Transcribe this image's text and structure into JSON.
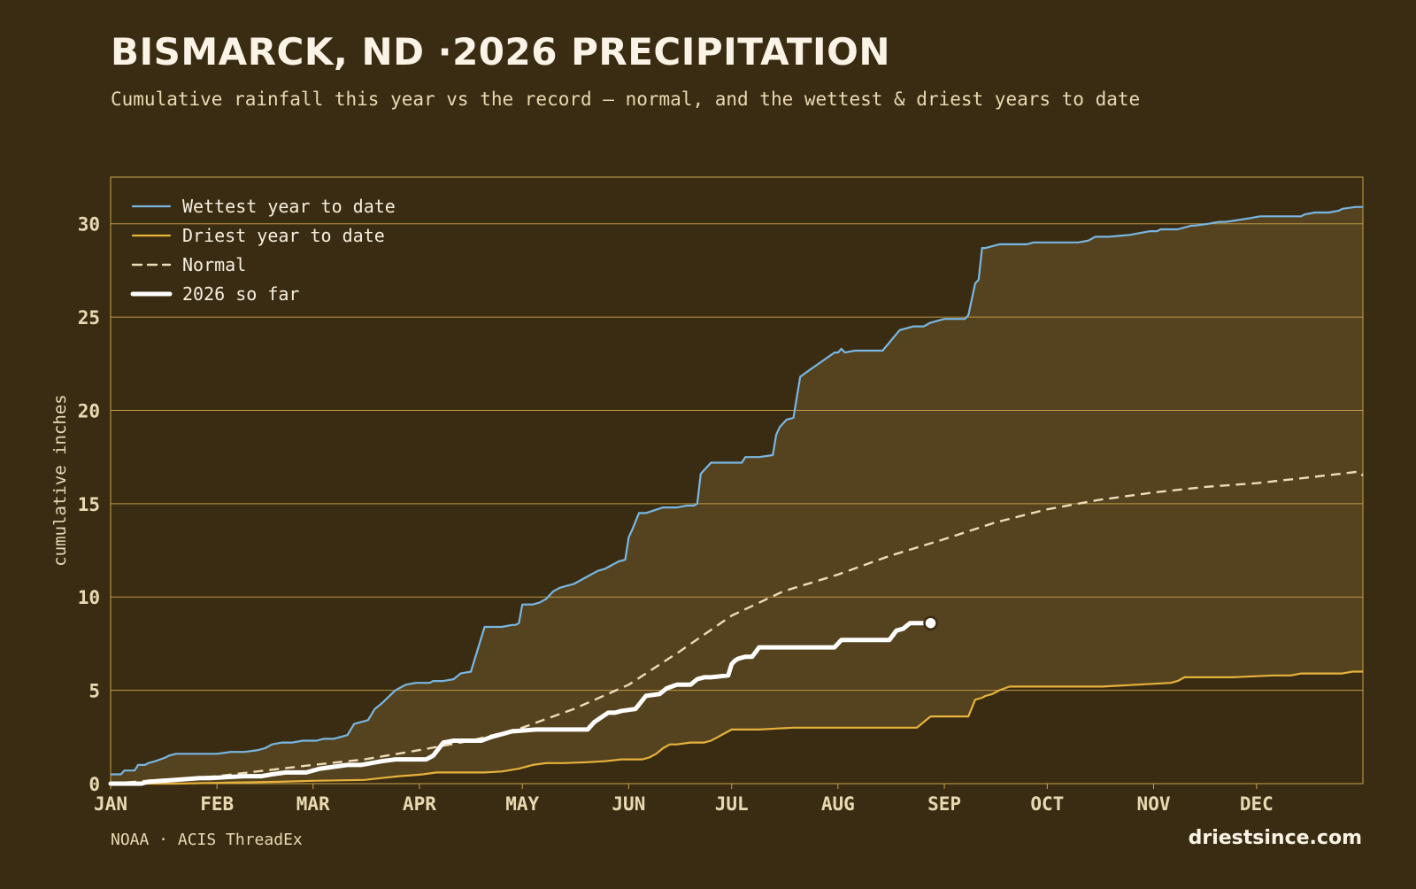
{
  "header": {
    "title": "BISMARCK, ND ·2026 PRECIPITATION",
    "subtitle": "Cumulative rainfall this year vs the record — normal, and the wettest & driest years to date"
  },
  "footer": {
    "source": "NOAA · ACIS ThreadEx",
    "brand": "driestsince.com"
  },
  "colors": {
    "background": "#3a2c12",
    "band_fill": "#55421f",
    "grid": "#c9a24a",
    "wettest": "#78b7e3",
    "driest": "#e6b23c",
    "normal": "#ecdcb8",
    "current": "#ffffff",
    "tick_text": "#e9d9b3"
  },
  "chart_data": {
    "type": "line",
    "title": "BISMARCK, ND ·2026 PRECIPITATION",
    "xlabel": "",
    "ylabel": "cumulative inches",
    "xlim": [
      1,
      366
    ],
    "ylim": [
      0,
      32.5
    ],
    "x_unit": "day of year",
    "yticks": [
      0,
      5,
      10,
      15,
      20,
      25,
      30
    ],
    "xticks": [
      {
        "label": "JAN",
        "day": 1
      },
      {
        "label": "FEB",
        "day": 32
      },
      {
        "label": "MAR",
        "day": 60
      },
      {
        "label": "APR",
        "day": 91
      },
      {
        "label": "MAY",
        "day": 121
      },
      {
        "label": "JUN",
        "day": 152
      },
      {
        "label": "JUL",
        "day": 182
      },
      {
        "label": "AUG",
        "day": 213
      },
      {
        "label": "SEP",
        "day": 244
      },
      {
        "label": "OCT",
        "day": 274
      },
      {
        "label": "NOV",
        "day": 305
      },
      {
        "label": "DEC",
        "day": 335
      }
    ],
    "grid": true,
    "legend_position": "top-left",
    "series": [
      {
        "name": "Wettest year to date",
        "style": "line",
        "x": [
          1,
          4,
          5,
          8,
          9,
          11,
          12,
          14,
          17,
          18,
          20,
          23,
          32,
          36,
          40,
          44,
          46,
          48,
          51,
          54,
          57,
          61,
          63,
          66,
          68,
          70,
          72,
          74,
          76,
          78,
          80,
          84,
          87,
          90,
          92,
          94,
          95,
          97,
          98,
          101,
          103,
          106,
          110,
          115,
          118,
          119,
          120,
          121,
          122,
          124,
          126,
          128,
          130,
          132,
          134,
          136,
          140,
          143,
          145,
          147,
          148,
          149,
          151,
          152,
          153,
          155,
          157,
          162,
          166,
          169,
          171,
          172,
          173,
          174,
          176,
          185,
          186,
          190,
          194,
          195,
          196,
          197,
          198,
          200,
          202,
          205,
          212,
          213,
          214,
          215,
          218,
          226,
          231,
          235,
          238,
          240,
          242,
          244,
          250,
          251,
          253,
          254,
          255,
          256,
          260,
          268,
          270,
          275,
          283,
          286,
          288,
          290,
          292,
          298,
          304,
          306,
          307,
          312,
          316,
          317,
          321,
          324,
          326,
          333,
          336,
          348,
          349,
          352,
          356,
          359,
          360,
          364,
          366
        ],
        "y": [
          0.5,
          0.5,
          0.7,
          0.7,
          1.0,
          1.0,
          1.1,
          1.2,
          1.4,
          1.5,
          1.6,
          1.6,
          1.6,
          1.7,
          1.7,
          1.8,
          1.9,
          2.1,
          2.2,
          2.2,
          2.3,
          2.3,
          2.4,
          2.4,
          2.5,
          2.6,
          3.2,
          3.3,
          3.4,
          4.0,
          4.3,
          5.0,
          5.3,
          5.4,
          5.4,
          5.4,
          5.5,
          5.5,
          5.5,
          5.6,
          5.9,
          6.0,
          8.4,
          8.4,
          8.5,
          8.5,
          8.6,
          9.6,
          9.6,
          9.6,
          9.7,
          9.9,
          10.3,
          10.5,
          10.6,
          10.7,
          11.1,
          11.4,
          11.5,
          11.7,
          11.8,
          11.9,
          12.0,
          13.2,
          13.6,
          14.5,
          14.5,
          14.8,
          14.8,
          14.9,
          14.9,
          15.0,
          16.6,
          16.8,
          17.2,
          17.2,
          17.5,
          17.5,
          17.6,
          18.7,
          19.1,
          19.3,
          19.5,
          19.6,
          21.8,
          22.2,
          23.1,
          23.1,
          23.3,
          23.1,
          23.2,
          23.2,
          24.3,
          24.5,
          24.5,
          24.7,
          24.8,
          24.9,
          24.9,
          25.1,
          26.8,
          27.0,
          28.7,
          28.7,
          28.9,
          28.9,
          29.0,
          29.0,
          29.0,
          29.1,
          29.3,
          29.3,
          29.3,
          29.4,
          29.6,
          29.6,
          29.7,
          29.7,
          29.9,
          29.9,
          30.0,
          30.1,
          30.1,
          30.3,
          30.4,
          30.4,
          30.5,
          30.6,
          30.6,
          30.7,
          30.8,
          30.9,
          30.9
        ]
      },
      {
        "name": "Driest year to date",
        "style": "line",
        "x": [
          1,
          20,
          35,
          50,
          60,
          75,
          80,
          85,
          89,
          92,
          96,
          100,
          105,
          110,
          115,
          120,
          123,
          124,
          128,
          133,
          140,
          145,
          150,
          153,
          156,
          158,
          160,
          162,
          164,
          166,
          170,
          174,
          176,
          178,
          180,
          182,
          184,
          188,
          190,
          195,
          200,
          210,
          222,
          230,
          236,
          238,
          240,
          246,
          250,
          251,
          253,
          255,
          256,
          258,
          260,
          263,
          270,
          280,
          290,
          300,
          310,
          312,
          314,
          318,
          324,
          328,
          340,
          345,
          348,
          355,
          360,
          363,
          366
        ],
        "y": [
          0.0,
          0.0,
          0.05,
          0.1,
          0.15,
          0.2,
          0.3,
          0.4,
          0.45,
          0.5,
          0.6,
          0.6,
          0.6,
          0.6,
          0.65,
          0.8,
          0.95,
          1.0,
          1.1,
          1.1,
          1.15,
          1.2,
          1.3,
          1.3,
          1.3,
          1.4,
          1.6,
          1.9,
          2.1,
          2.1,
          2.2,
          2.2,
          2.3,
          2.5,
          2.7,
          2.9,
          2.9,
          2.9,
          2.9,
          2.95,
          3.0,
          3.0,
          3.0,
          3.0,
          3.0,
          3.3,
          3.6,
          3.6,
          3.6,
          3.6,
          4.5,
          4.6,
          4.7,
          4.8,
          5.0,
          5.2,
          5.2,
          5.2,
          5.2,
          5.3,
          5.4,
          5.5,
          5.7,
          5.7,
          5.7,
          5.7,
          5.8,
          5.8,
          5.9,
          5.9,
          5.9,
          6.0,
          6.0
        ]
      },
      {
        "name": "Normal",
        "style": "dashed",
        "x": [
          1,
          15,
          32,
          46,
          60,
          75,
          91,
          106,
          121,
          136,
          152,
          167,
          182,
          197,
          213,
          228,
          244,
          259,
          274,
          289,
          305,
          320,
          335,
          350,
          364,
          365,
          366
        ],
        "y": [
          0.0,
          0.2,
          0.4,
          0.7,
          1.0,
          1.3,
          1.8,
          2.3,
          3.0,
          4.0,
          5.3,
          7.1,
          9.0,
          10.3,
          11.2,
          12.2,
          13.1,
          14.0,
          14.7,
          15.2,
          15.6,
          15.9,
          16.1,
          16.4,
          16.7,
          16.7,
          16.5
        ]
      },
      {
        "name": "2026 so far",
        "style": "thick",
        "x": [
          1,
          10,
          12,
          20,
          27,
          30,
          40,
          45,
          48,
          52,
          58,
          62,
          66,
          70,
          74,
          77,
          80,
          84,
          90,
          93,
          95,
          98,
          101,
          103,
          105,
          109,
          112,
          114,
          118,
          125,
          130,
          135,
          140,
          142,
          146,
          148,
          150,
          154,
          157,
          161,
          163,
          166,
          170,
          172,
          174,
          176,
          181,
          182,
          183,
          184,
          186,
          187,
          188,
          190,
          191,
          192,
          196,
          200,
          205,
          208,
          210,
          212,
          214,
          220,
          222,
          228,
          230,
          232,
          234,
          236,
          238,
          240
        ],
        "y": [
          0.0,
          0.0,
          0.1,
          0.2,
          0.3,
          0.3,
          0.4,
          0.4,
          0.5,
          0.6,
          0.6,
          0.8,
          0.9,
          1.0,
          1.0,
          1.1,
          1.2,
          1.3,
          1.3,
          1.3,
          1.5,
          2.2,
          2.3,
          2.3,
          2.3,
          2.3,
          2.5,
          2.6,
          2.8,
          2.9,
          2.9,
          2.9,
          2.9,
          3.3,
          3.8,
          3.8,
          3.9,
          4.0,
          4.7,
          4.8,
          5.1,
          5.3,
          5.3,
          5.6,
          5.7,
          5.7,
          5.8,
          6.4,
          6.6,
          6.7,
          6.8,
          6.8,
          6.8,
          7.3,
          7.3,
          7.3,
          7.3,
          7.3,
          7.3,
          7.3,
          7.3,
          7.3,
          7.7,
          7.7,
          7.7,
          7.7,
          8.2,
          8.3,
          8.6,
          8.6,
          8.6,
          8.6
        ]
      }
    ]
  }
}
